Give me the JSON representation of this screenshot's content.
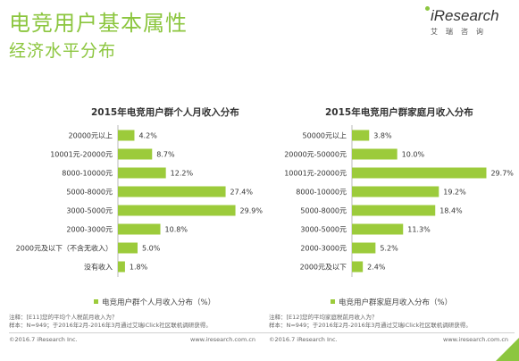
{
  "header": {
    "title": "电竞用户基本属性",
    "subtitle": "经济水平分布",
    "logo": {
      "brand": "iResearch",
      "sub": "艾瑞咨询"
    }
  },
  "colors": {
    "accent": "#8cc63f",
    "bar": "#9ccb3b"
  },
  "chart_data": [
    {
      "type": "bar",
      "orientation": "horizontal",
      "title": "2015年电竞用户群个人月收入分布",
      "categories": [
        "20000元以上",
        "10001元-20000元",
        "8000-10000元",
        "5000-8000元",
        "3000-5000元",
        "2000-3000元",
        "2000元及以下（不含无收入）",
        "没有收入"
      ],
      "values": [
        4.2,
        8.7,
        12.2,
        27.4,
        29.9,
        10.8,
        5.0,
        1.8
      ],
      "value_labels": [
        "4.2%",
        "8.7%",
        "12.2%",
        "27.4%",
        "29.9%",
        "10.8%",
        "5.0%",
        "1.8%"
      ],
      "legend": "电竞用户群个人月收入分布（%）",
      "legend_position": "bottom",
      "grid": false
    },
    {
      "type": "bar",
      "orientation": "horizontal",
      "title": "2015年电竞用户群家庭月收入分布",
      "categories": [
        "50000元以上",
        "20000元-50000元",
        "10001元-20000元",
        "8000-10000元",
        "5000-8000元",
        "3000-5000元",
        "2000-3000元",
        "2000元及以下"
      ],
      "values": [
        3.8,
        10.0,
        29.7,
        19.2,
        18.4,
        11.3,
        5.2,
        2.4
      ],
      "value_labels": [
        "3.8%",
        "10.0%",
        "29.7%",
        "19.2%",
        "18.4%",
        "11.3%",
        "5.2%",
        "2.4%"
      ],
      "legend": "电竞用户群家庭月收入分布（%）",
      "legend_position": "bottom",
      "grid": false
    }
  ],
  "notes": {
    "left": [
      "注释：[E11]您的平均个人税前月收入为？",
      "样本：N=949；于2016年2月-2016年3月通过艾瑞iClick社区联机调研获得。"
    ],
    "right": [
      "注释：[E12]您的平均家庭税前月收入为？",
      "样本：N=949；于2016年2月-2016年3月通过艾瑞iClick社区联机调研获得。"
    ]
  },
  "footer": [
    {
      "left": "©2016.7 iResearch Inc.",
      "right": "www.iresearch.com.cn"
    },
    {
      "left": "©2016.7 iResearch Inc.",
      "right": "www.iresearch.com.cn"
    }
  ]
}
